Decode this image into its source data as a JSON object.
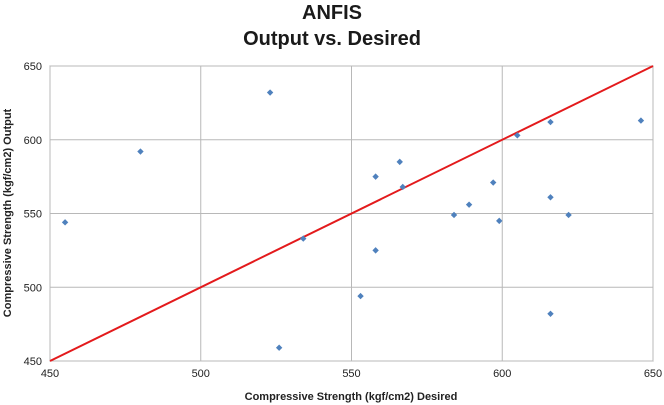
{
  "chart_data": {
    "type": "scatter",
    "title": "ANFIS",
    "subtitle": "Output vs. Desired",
    "xlabel": "Compressive Strength (kgf/cm2) Desired",
    "ylabel": "Compressive Strength (kgf/cm2) Output",
    "xlim": [
      450,
      650
    ],
    "ylim": [
      450,
      650
    ],
    "xticks": [
      "450",
      "500",
      "550",
      "600",
      "650"
    ],
    "yticks": [
      "450",
      "500",
      "550",
      "600",
      "650"
    ],
    "grid": true,
    "colors": {
      "points": "#4f81bd",
      "line": "#e31a1c",
      "grid": "#b8b8b8"
    },
    "reference_line": {
      "from": [
        450,
        450
      ],
      "to": [
        650,
        650
      ]
    },
    "points": [
      {
        "x": 455,
        "y": 544
      },
      {
        "x": 480,
        "y": 592
      },
      {
        "x": 523,
        "y": 632
      },
      {
        "x": 526,
        "y": 459
      },
      {
        "x": 534,
        "y": 533
      },
      {
        "x": 553,
        "y": 494
      },
      {
        "x": 558,
        "y": 575
      },
      {
        "x": 558,
        "y": 525
      },
      {
        "x": 566,
        "y": 585
      },
      {
        "x": 567,
        "y": 568
      },
      {
        "x": 584,
        "y": 549
      },
      {
        "x": 589,
        "y": 556
      },
      {
        "x": 597,
        "y": 571
      },
      {
        "x": 599,
        "y": 545
      },
      {
        "x": 605,
        "y": 603
      },
      {
        "x": 616,
        "y": 612
      },
      {
        "x": 616,
        "y": 561
      },
      {
        "x": 616,
        "y": 482
      },
      {
        "x": 622,
        "y": 549
      },
      {
        "x": 646,
        "y": 613
      }
    ]
  }
}
